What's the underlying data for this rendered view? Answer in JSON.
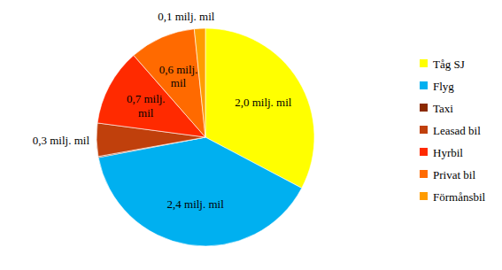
{
  "chart_data": {
    "type": "pie",
    "categories": [
      "Tåg SJ",
      "Flyg",
      "Taxi",
      "Leasad bil",
      "Hyrbil",
      "Privat bil",
      "Förmånsbil"
    ],
    "values": [
      2.0,
      2.4,
      0.01,
      0.3,
      0.7,
      0.6,
      0.1
    ],
    "value_labels": [
      "2,0 milj. mil",
      "2,4 milj. mil",
      null,
      "0,3 milj. mil",
      "0,7 milj. mil",
      "0,6 milj. mil",
      "0,1 milj. mil"
    ],
    "colors": [
      "#ffff00",
      "#00b0f0",
      "#8b2a00",
      "#c0400c",
      "#ff2a00",
      "#ff6a00",
      "#ff9c00"
    ],
    "data_labels": true,
    "legend": "right"
  }
}
